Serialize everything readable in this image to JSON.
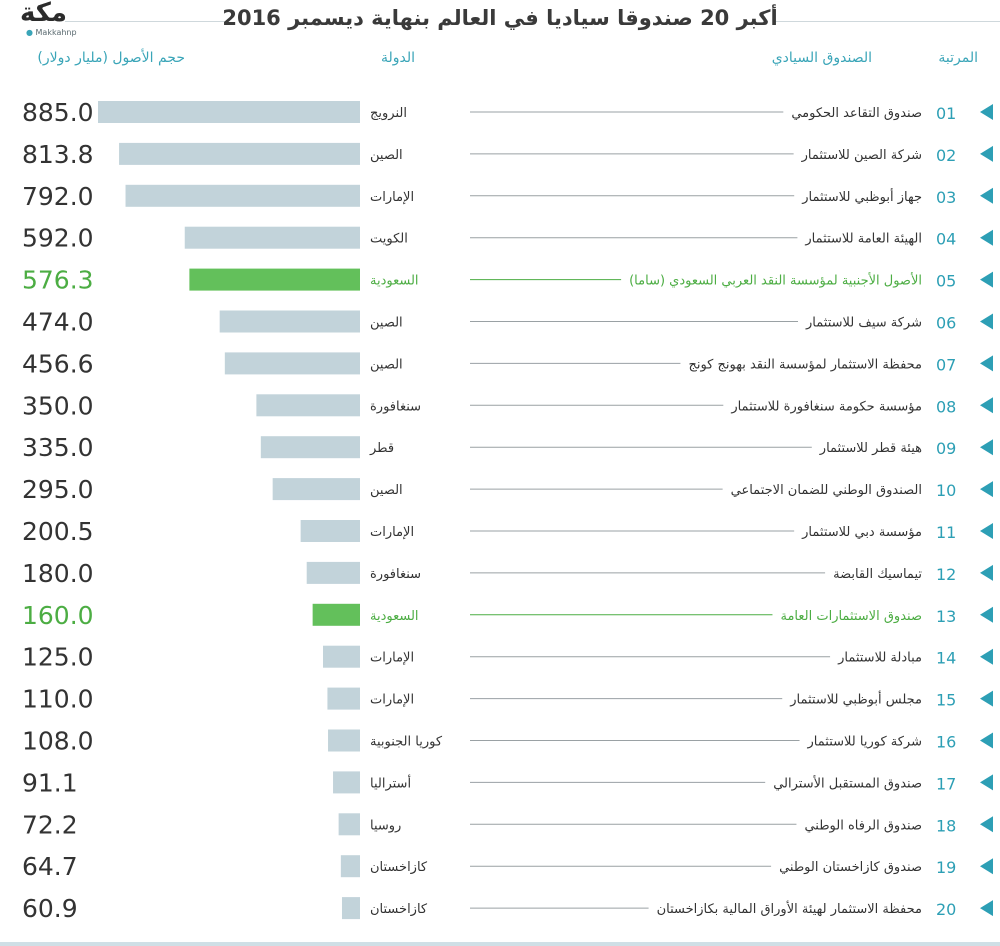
{
  "title": "أكبر 20 صندوقا سياديا في العالم بنهاية ديسمبر 2016",
  "logo": {
    "name": "مكة",
    "sub": "Makkahnp"
  },
  "headers": {
    "rank": "المرتبة",
    "fund": "الصندوق السيادي",
    "country": "الدولة",
    "assets": "حجم الأصول (مليار دولار)"
  },
  "colors": {
    "bar": "#c2d3da",
    "highlight_bar": "#63c05b",
    "highlight_text": "#4cad43",
    "rank_text": "#2d9fb5",
    "value_text": "#333333",
    "leader": "#9aa1a4"
  },
  "chart_data": {
    "type": "bar",
    "title": "أكبر 20 صندوقا سياديا في العالم بنهاية ديسمبر 2016",
    "xlabel": "",
    "ylabel": "حجم الأصول (مليار دولار)",
    "xlim": [
      0,
      885.0
    ],
    "rows": [
      {
        "rank": "01",
        "fund": "صندوق التقاعد الحكومي",
        "country": "النرويج",
        "value": 885.0,
        "value_label": "885.0",
        "highlight": false
      },
      {
        "rank": "02",
        "fund": "شركة الصين للاستثمار",
        "country": "الصين",
        "value": 813.8,
        "value_label": "813.8",
        "highlight": false
      },
      {
        "rank": "03",
        "fund": "جهاز أبوظبي للاستثمار",
        "country": "الإمارات",
        "value": 792.0,
        "value_label": "792.0",
        "highlight": false
      },
      {
        "rank": "04",
        "fund": "الهيئة العامة للاستثمار",
        "country": "الكويت",
        "value": 592.0,
        "value_label": "592.0",
        "highlight": false
      },
      {
        "rank": "05",
        "fund": "الأصول الأجنبية لمؤسسة النقد العربي السعودي (ساما)",
        "country": "السعودية",
        "value": 576.3,
        "value_label": "576.3",
        "highlight": true
      },
      {
        "rank": "06",
        "fund": "شركة سيف للاستثمار",
        "country": "الصين",
        "value": 474.0,
        "value_label": "474.0",
        "highlight": false
      },
      {
        "rank": "07",
        "fund": "محفظة الاستثمار لمؤسسة النقد بهونج كونج",
        "country": "الصين",
        "value": 456.6,
        "value_label": "456.6",
        "highlight": false
      },
      {
        "rank": "08",
        "fund": "مؤسسة حكومة سنغافورة للاستثمار",
        "country": "سنغافورة",
        "value": 350.0,
        "value_label": "350.0",
        "highlight": false
      },
      {
        "rank": "09",
        "fund": "هيئة قطر للاستثمار",
        "country": "قطر",
        "value": 335.0,
        "value_label": "335.0",
        "highlight": false
      },
      {
        "rank": "10",
        "fund": "الصندوق الوطني للضمان الاجتماعي",
        "country": "الصين",
        "value": 295.0,
        "value_label": "295.0",
        "highlight": false
      },
      {
        "rank": "11",
        "fund": "مؤسسة دبي للاستثمار",
        "country": "الإمارات",
        "value": 200.5,
        "value_label": "200.5",
        "highlight": false
      },
      {
        "rank": "12",
        "fund": "تيماسيك القابضة",
        "country": "سنغافورة",
        "value": 180.0,
        "value_label": "180.0",
        "highlight": false
      },
      {
        "rank": "13",
        "fund": "صندوق الاستثمارات العامة",
        "country": "السعودية",
        "value": 160.0,
        "value_label": "160.0",
        "highlight": true
      },
      {
        "rank": "14",
        "fund": "مبادلة للاستثمار",
        "country": "الإمارات",
        "value": 125.0,
        "value_label": "125.0",
        "highlight": false
      },
      {
        "rank": "15",
        "fund": "مجلس أبوظبي للاستثمار",
        "country": "الإمارات",
        "value": 110.0,
        "value_label": "110.0",
        "highlight": false
      },
      {
        "rank": "16",
        "fund": "شركة كوريا للاستثمار",
        "country": "كوريا الجنوبية",
        "value": 108.0,
        "value_label": "108.0",
        "highlight": false
      },
      {
        "rank": "17",
        "fund": "صندوق المستقبل الأسترالي",
        "country": "أستراليا",
        "value": 91.1,
        "value_label": "91.1",
        "highlight": false
      },
      {
        "rank": "18",
        "fund": "صندوق الرفاه الوطني",
        "country": "روسيا",
        "value": 72.2,
        "value_label": "72.2",
        "highlight": false
      },
      {
        "rank": "19",
        "fund": "صندوق كازاخستان الوطني",
        "country": "كازاخستان",
        "value": 64.7,
        "value_label": "64.7",
        "highlight": false
      },
      {
        "rank": "20",
        "fund": "محفظة الاستثمار لهيئة الأوراق المالية بكازاخستان",
        "country": "كازاخستان",
        "value": 60.9,
        "value_label": "60.9",
        "highlight": false
      }
    ]
  }
}
